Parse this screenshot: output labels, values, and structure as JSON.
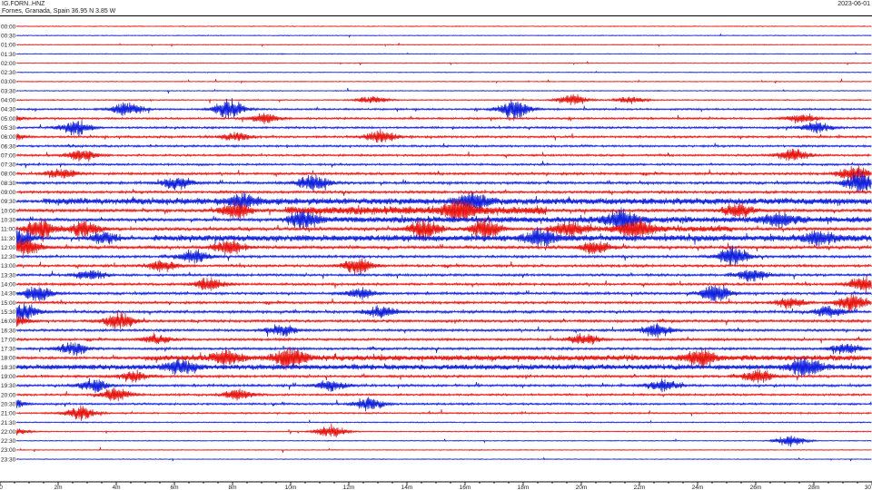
{
  "header": {
    "station": "IG.FORN..HNZ",
    "location": "Fornes, Granada, Spain  36.95 N 3.85 W",
    "date": "2023-06-01"
  },
  "colors": {
    "red": "#e8140f",
    "blue": "#1020dd",
    "text": "#222222",
    "axis": "#000000"
  },
  "chart_data": {
    "type": "line",
    "title": "IG.FORN..HNZ",
    "subtitle": "Fornes, Granada, Spain  36.95 N 3.85 W",
    "date": "2023-06-01",
    "row_labels": [
      "00:00",
      "00:30",
      "01:00",
      "01:30",
      "02:00",
      "02:30",
      "03:00",
      "03:30",
      "04:00",
      "04:30",
      "05:00",
      "05:30",
      "06:00",
      "06:30",
      "07:00",
      "07:30",
      "08:00",
      "08:30",
      "09:00",
      "09:30",
      "10:00",
      "10:30",
      "11:00",
      "11:30",
      "12:00",
      "12:30",
      "13:00",
      "13:30",
      "14:00",
      "14:30",
      "15:00",
      "15:30",
      "16:00",
      "16:30",
      "17:00",
      "17:30",
      "18:00",
      "18:30",
      "19:00",
      "19:30",
      "20:00",
      "20:30",
      "21:00",
      "21:30",
      "22:00",
      "22:30",
      "23:00",
      "23:30"
    ],
    "row_colors": [
      "red",
      "blue"
    ],
    "x_ticks": [
      "0",
      "2m",
      "4m",
      "6m",
      "8m",
      "10m",
      "12m",
      "14m",
      "16m",
      "18m",
      "20m",
      "22m",
      "24m",
      "26m",
      "28m",
      "30"
    ],
    "xlim": [
      0,
      30
    ],
    "x_unit": "minutes",
    "activity": [
      0.04,
      0.04,
      0.04,
      0.04,
      0.04,
      0.04,
      0.05,
      0.06,
      0.1,
      0.25,
      0.28,
      0.3,
      0.32,
      0.3,
      0.3,
      0.3,
      0.38,
      0.42,
      0.42,
      0.48,
      0.55,
      0.55,
      0.55,
      0.55,
      0.52,
      0.4,
      0.4,
      0.38,
      0.38,
      0.4,
      0.38,
      0.42,
      0.4,
      0.38,
      0.36,
      0.36,
      0.45,
      0.42,
      0.38,
      0.36,
      0.3,
      0.28,
      0.2,
      0.1,
      0.08,
      0.06,
      0.05,
      0.04
    ],
    "events": [
      {
        "row": 8,
        "t": 12.8,
        "a": 0.35
      },
      {
        "row": 8,
        "t": 19.7,
        "a": 0.5
      },
      {
        "row": 8,
        "t": 21.7,
        "a": 0.3
      },
      {
        "row": 9,
        "t": 4.4,
        "a": 0.7
      },
      {
        "row": 9,
        "t": 17.7,
        "a": 1.0
      },
      {
        "row": 9,
        "t": 7.9,
        "a": 0.9
      },
      {
        "row": 10,
        "t": 0.1,
        "a": 0.6
      },
      {
        "row": 10,
        "t": 9.1,
        "a": 0.5
      },
      {
        "row": 10,
        "t": 27.6,
        "a": 0.4
      },
      {
        "row": 11,
        "t": 2.6,
        "a": 0.7
      },
      {
        "row": 11,
        "t": 28.1,
        "a": 0.5
      },
      {
        "row": 12,
        "t": 0.2,
        "a": 0.6
      },
      {
        "row": 12,
        "t": 13.1,
        "a": 0.6
      },
      {
        "row": 12,
        "t": 8.1,
        "a": 0.4
      },
      {
        "row": 14,
        "t": 2.8,
        "a": 0.5
      },
      {
        "row": 14,
        "t": 27.3,
        "a": 0.6
      },
      {
        "row": 16,
        "t": 2.1,
        "a": 0.5
      },
      {
        "row": 16,
        "t": 29.4,
        "a": 0.7
      },
      {
        "row": 17,
        "t": 6.1,
        "a": 0.6
      },
      {
        "row": 17,
        "t": 10.8,
        "a": 0.8
      },
      {
        "row": 17,
        "t": 29.6,
        "a": 1.0
      },
      {
        "row": 19,
        "t": 16.3,
        "a": 0.7
      },
      {
        "row": 19,
        "t": 8.4,
        "a": 0.6
      },
      {
        "row": 20,
        "t": 8.1,
        "a": 0.8
      },
      {
        "row": 20,
        "t": 15.8,
        "a": 0.9
      },
      {
        "row": 20,
        "t": 25.4,
        "a": 0.7
      },
      {
        "row": 21,
        "t": 10.4,
        "a": 0.8
      },
      {
        "row": 21,
        "t": 21.4,
        "a": 1.0
      },
      {
        "row": 21,
        "t": 26.8,
        "a": 0.6
      },
      {
        "row": 22,
        "t": 1.4,
        "a": 1.0
      },
      {
        "row": 22,
        "t": 2.9,
        "a": 0.8
      },
      {
        "row": 22,
        "t": 14.6,
        "a": 1.0
      },
      {
        "row": 22,
        "t": 16.7,
        "a": 0.9
      },
      {
        "row": 22,
        "t": 21.9,
        "a": 0.9
      },
      {
        "row": 22,
        "t": 19.6,
        "a": 0.6
      },
      {
        "row": 23,
        "t": 0.6,
        "a": 1.0
      },
      {
        "row": 23,
        "t": 3.6,
        "a": 0.6
      },
      {
        "row": 23,
        "t": 18.6,
        "a": 0.8
      },
      {
        "row": 23,
        "t": 28.2,
        "a": 0.6
      },
      {
        "row": 24,
        "t": 0.9,
        "a": 0.8
      },
      {
        "row": 24,
        "t": 7.9,
        "a": 0.7
      },
      {
        "row": 24,
        "t": 20.5,
        "a": 0.6
      },
      {
        "row": 25,
        "t": 25.2,
        "a": 1.0
      },
      {
        "row": 25,
        "t": 6.7,
        "a": 0.6
      },
      {
        "row": 26,
        "t": 12.3,
        "a": 0.7
      },
      {
        "row": 26,
        "t": 5.6,
        "a": 0.5
      },
      {
        "row": 27,
        "t": 25.9,
        "a": 0.6
      },
      {
        "row": 27,
        "t": 3.1,
        "a": 0.5
      },
      {
        "row": 28,
        "t": 7.2,
        "a": 0.6
      },
      {
        "row": 28,
        "t": 29.7,
        "a": 0.7
      },
      {
        "row": 29,
        "t": 1.3,
        "a": 0.7
      },
      {
        "row": 29,
        "t": 24.6,
        "a": 0.9
      },
      {
        "row": 29,
        "t": 12.4,
        "a": 0.5
      },
      {
        "row": 30,
        "t": 29.3,
        "a": 0.8
      },
      {
        "row": 30,
        "t": 27.2,
        "a": 0.5
      },
      {
        "row": 31,
        "t": 0.8,
        "a": 0.7
      },
      {
        "row": 31,
        "t": 13.1,
        "a": 0.6
      },
      {
        "row": 31,
        "t": 28.5,
        "a": 0.5
      },
      {
        "row": 32,
        "t": 4.1,
        "a": 0.8
      },
      {
        "row": 32,
        "t": 0.4,
        "a": 0.6
      },
      {
        "row": 33,
        "t": 9.7,
        "a": 0.5
      },
      {
        "row": 33,
        "t": 22.6,
        "a": 0.6
      },
      {
        "row": 34,
        "t": 20.1,
        "a": 0.5
      },
      {
        "row": 34,
        "t": 5.4,
        "a": 0.4
      },
      {
        "row": 35,
        "t": 2.5,
        "a": 0.6
      },
      {
        "row": 35,
        "t": 29.1,
        "a": 0.5
      },
      {
        "row": 36,
        "t": 10.0,
        "a": 1.0
      },
      {
        "row": 36,
        "t": 7.8,
        "a": 0.6
      },
      {
        "row": 36,
        "t": 24.1,
        "a": 0.7
      },
      {
        "row": 37,
        "t": 6.2,
        "a": 0.6
      },
      {
        "row": 37,
        "t": 27.7,
        "a": 0.9
      },
      {
        "row": 38,
        "t": 4.6,
        "a": 0.5
      },
      {
        "row": 38,
        "t": 26.1,
        "a": 0.6
      },
      {
        "row": 39,
        "t": 3.2,
        "a": 0.6
      },
      {
        "row": 39,
        "t": 22.8,
        "a": 0.6
      },
      {
        "row": 39,
        "t": 11.4,
        "a": 0.5
      },
      {
        "row": 40,
        "t": 4.0,
        "a": 0.6
      },
      {
        "row": 40,
        "t": 8.2,
        "a": 0.5
      },
      {
        "row": 41,
        "t": 12.7,
        "a": 0.6
      },
      {
        "row": 41,
        "t": 0.3,
        "a": 0.6
      },
      {
        "row": 42,
        "t": 2.8,
        "a": 0.6
      },
      {
        "row": 44,
        "t": 11.4,
        "a": 0.6
      },
      {
        "row": 44,
        "t": 0.5,
        "a": 0.3
      },
      {
        "row": 45,
        "t": 27.2,
        "a": 0.5
      }
    ],
    "bands": [
      {
        "row": 19,
        "t0": 1.5,
        "t1": 30,
        "a": 0.25
      },
      {
        "row": 20,
        "t0": 9.8,
        "t1": 18.8,
        "a": 0.35
      },
      {
        "row": 21,
        "t0": 10.2,
        "t1": 30,
        "a": 0.22
      },
      {
        "row": 22,
        "t0": 18.8,
        "t1": 25.2,
        "a": 0.22
      },
      {
        "row": 23,
        "t0": 5.3,
        "t1": 30,
        "a": 0.22
      },
      {
        "row": 36,
        "t0": 5.0,
        "t1": 30,
        "a": 0.2
      },
      {
        "row": 37,
        "t0": 0.2,
        "t1": 30,
        "a": 0.2
      }
    ]
  }
}
